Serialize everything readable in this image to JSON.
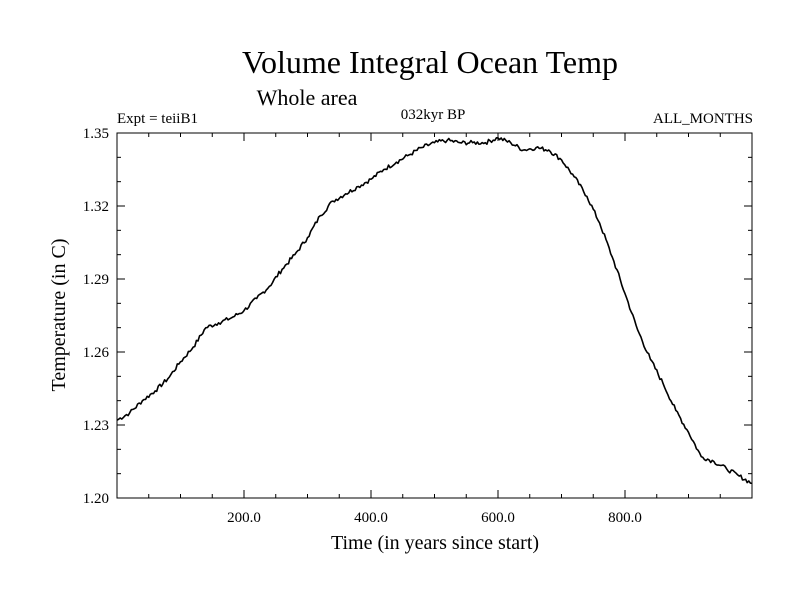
{
  "header": {
    "title": "Volume Integral Ocean Temp",
    "subtitle": "Whole area",
    "expt": "Expt = teiiB1",
    "period": "032kyr BP",
    "months": "ALL_MONTHS"
  },
  "chart_data": {
    "type": "line",
    "xlabel": "Time (in years since start)",
    "ylabel": "Temperature (in C)",
    "xlim": [
      0,
      1000
    ],
    "ylim": [
      1.2,
      1.35
    ],
    "x_ticks": [
      200,
      400,
      600,
      800
    ],
    "x_tick_labels": [
      "200.0",
      "400.0",
      "600.0",
      "800.0"
    ],
    "y_ticks": [
      1.2,
      1.23,
      1.26,
      1.29,
      1.32,
      1.35
    ],
    "y_tick_labels": [
      "1.20",
      "1.23",
      "1.26",
      "1.29",
      "1.32",
      "1.35"
    ],
    "grid": false,
    "series": [
      {
        "color": "#000000",
        "x": [
          0,
          20,
          40,
          60,
          80,
          100,
          120,
          140,
          160,
          180,
          200,
          220,
          240,
          260,
          280,
          300,
          320,
          340,
          360,
          380,
          400,
          420,
          440,
          460,
          480,
          500,
          520,
          540,
          560,
          580,
          600,
          620,
          640,
          660,
          680,
          700,
          720,
          740,
          760,
          780,
          800,
          820,
          840,
          860,
          880,
          900,
          920,
          940,
          960,
          980,
          1000
        ],
        "y": [
          1.232,
          1.235,
          1.24,
          1.244,
          1.249,
          1.256,
          1.262,
          1.27,
          1.272,
          1.274,
          1.277,
          1.282,
          1.287,
          1.294,
          1.3,
          1.307,
          1.316,
          1.322,
          1.325,
          1.328,
          1.331,
          1.335,
          1.338,
          1.341,
          1.344,
          1.346,
          1.347,
          1.346,
          1.346,
          1.346,
          1.348,
          1.346,
          1.343,
          1.344,
          1.343,
          1.339,
          1.332,
          1.324,
          1.313,
          1.299,
          1.284,
          1.269,
          1.257,
          1.247,
          1.236,
          1.227,
          1.217,
          1.215,
          1.212,
          1.209,
          1.206
        ]
      }
    ]
  }
}
